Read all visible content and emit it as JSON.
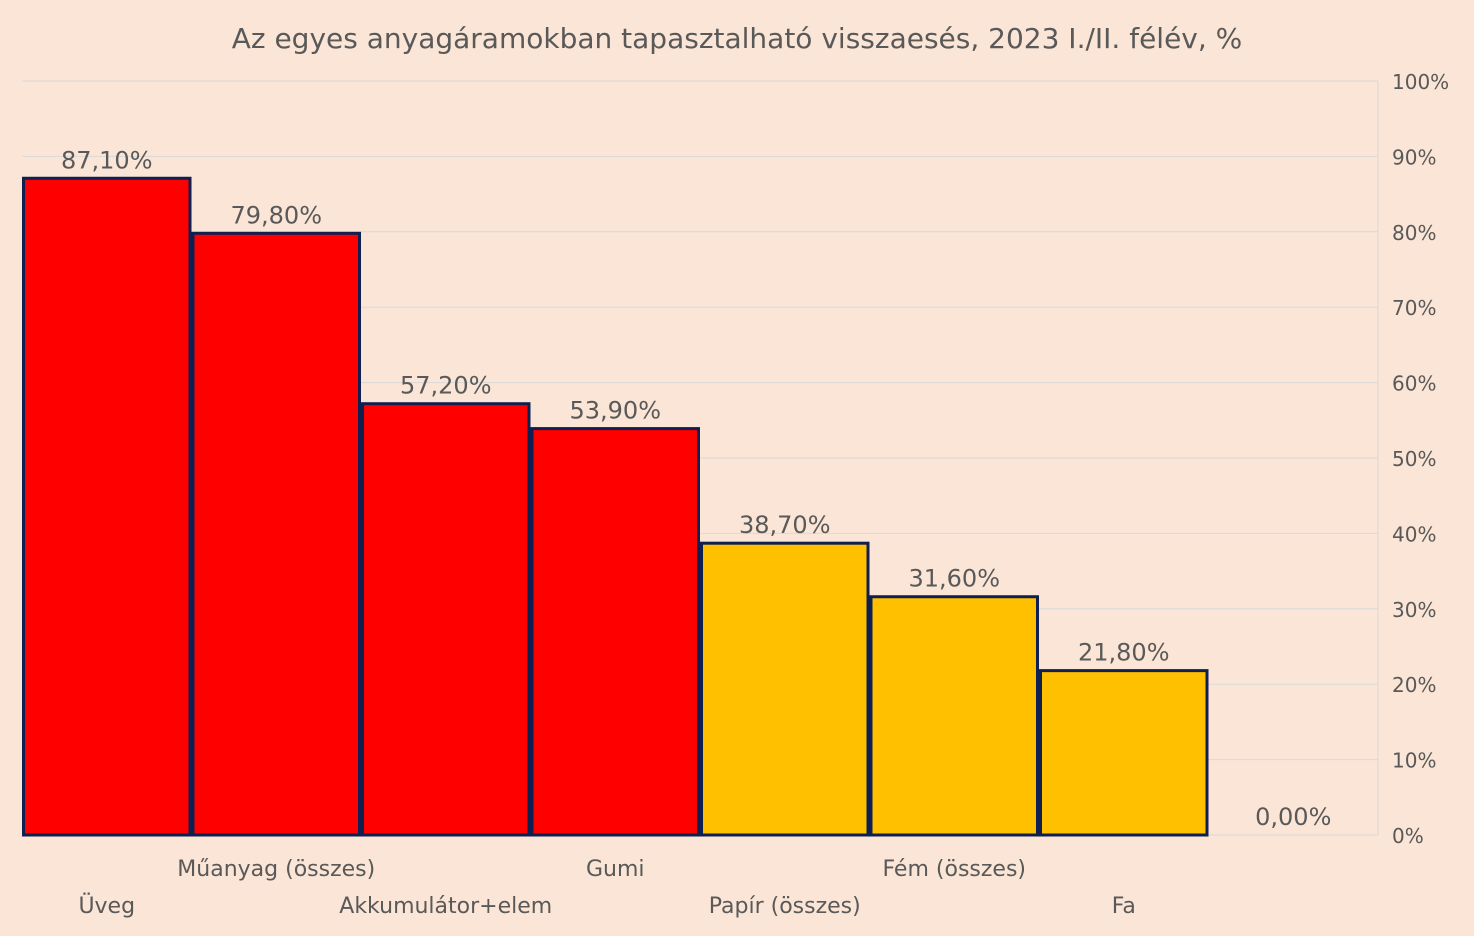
{
  "chart_data": {
    "type": "bar",
    "title": "Az egyes anyagáramokban tapasztalható visszaesés, 2023 I./II. félév, %",
    "categories": [
      "Üveg",
      "Műanyag (összes)",
      "Akkumulátor+elem",
      "Gumi",
      "Papír (összes)",
      "Fém (összes)",
      "Fa",
      ""
    ],
    "values": [
      87.1,
      79.8,
      57.2,
      53.9,
      38.7,
      31.6,
      21.8,
      0.0
    ],
    "data_labels": [
      "87,10%",
      "79,80%",
      "57,20%",
      "53,90%",
      "38,70%",
      "31,60%",
      "21,80%",
      "0,00%"
    ],
    "bar_colors": [
      "#FF0000",
      "#FF0000",
      "#FF0000",
      "#FF0000",
      "#FFC000",
      "#FFC000",
      "#FFC000",
      "#FFC000"
    ],
    "bar_border_color": "#0F1F4F",
    "background_color": "#FBE5D6",
    "ylim": [
      0,
      100
    ],
    "yticks": [
      "0%",
      "10%",
      "20%",
      "30%",
      "40%",
      "50%",
      "60%",
      "70%",
      "80%",
      "90%",
      "100%"
    ],
    "y_axis_position": "right",
    "grid": true,
    "xlabel": "",
    "ylabel": ""
  }
}
